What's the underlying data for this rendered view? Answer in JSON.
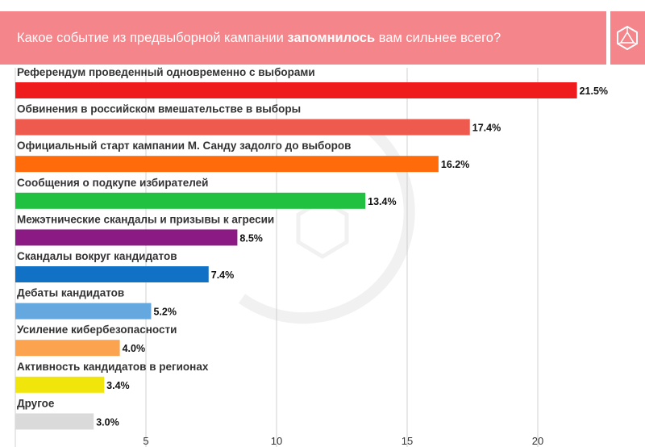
{
  "header": {
    "title_pre": "Какое событие из предвыборной кампании ",
    "title_bold": "запомнилось",
    "title_post": " вам сильнее всего?"
  },
  "colors": {
    "header_bg": "#f4858a",
    "axis_grid": "#d0d0d0"
  },
  "chart_data": {
    "type": "bar",
    "orientation": "horizontal",
    "title": "Какое событие из предвыборной кампании запомнилось вам сильнее всего?",
    "categories": [
      "Референдум проведенный одновременно с выборами",
      "Обвинения в российском вмешательстве в выборы",
      "Официальный старт кампании М. Санду задолго до выборов",
      "Сообщения о подкупе избирателей",
      "Межэтнические скандалы и призывы к агресии",
      "Скандалы вокруг кандидатов",
      "Дебаты кандидатов",
      "Усиление кибербезопасности",
      "Активность кандидатов в регионах",
      "Другое"
    ],
    "values": [
      21.5,
      17.4,
      16.2,
      13.4,
      8.5,
      7.4,
      5.2,
      4.0,
      3.4,
      3.0
    ],
    "value_labels": [
      "21.5%",
      "17.4%",
      "16.2%",
      "13.4%",
      "8.5%",
      "7.4%",
      "5.2%",
      "4.0%",
      "3.4%",
      "3.0%"
    ],
    "colors": [
      "#ee1c1c",
      "#ef5a4f",
      "#ff6a0a",
      "#20c040",
      "#8b1a84",
      "#1171c4",
      "#64a8df",
      "#fba34f",
      "#f0e60c",
      "#dadada"
    ],
    "xticks": [
      5,
      10,
      15,
      20
    ],
    "xlim": [
      0,
      24
    ],
    "grid": true,
    "xlabel": "",
    "ylabel": ""
  }
}
